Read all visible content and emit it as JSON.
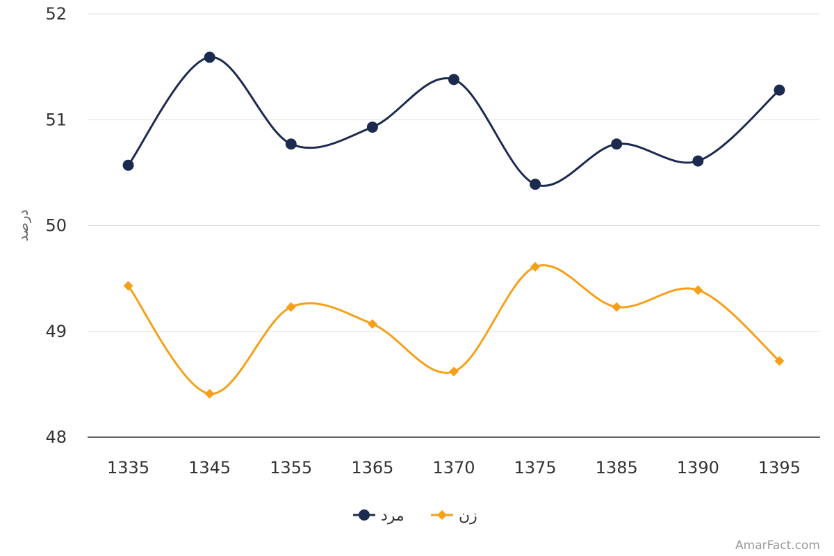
{
  "chart_data": {
    "type": "line",
    "title": "",
    "xlabel": "",
    "ylabel": "درصد",
    "categories": [
      "1335",
      "1345",
      "1355",
      "1365",
      "1370",
      "1375",
      "1385",
      "1390",
      "1395"
    ],
    "ylim": [
      48,
      52
    ],
    "yticks": [
      "48",
      "49",
      "50",
      "51",
      "52"
    ],
    "grid": true,
    "smooth": true,
    "legend_position": "bottom-center",
    "series": [
      {
        "name": "مرد",
        "color": "#1b2a4e",
        "marker": "circle",
        "values": [
          50.57,
          51.59,
          50.77,
          50.93,
          51.38,
          50.39,
          50.77,
          50.61,
          51.28
        ]
      },
      {
        "name": "زن",
        "color": "#f6a01a",
        "marker": "diamond",
        "values": [
          49.43,
          48.41,
          49.23,
          49.07,
          48.62,
          49.61,
          49.23,
          49.39,
          48.72
        ]
      }
    ]
  },
  "credit": "AmarFact.com"
}
